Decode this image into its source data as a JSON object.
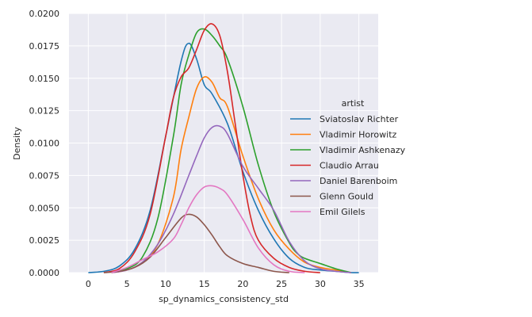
{
  "chart_data": {
    "type": "line",
    "xlabel": "sp_dynamics_consistency_std",
    "ylabel": "Density",
    "xlim": [
      -2.5,
      37.5
    ],
    "ylim": [
      0,
      0.02
    ],
    "xticks": [
      0,
      5,
      10,
      15,
      20,
      25,
      30,
      35
    ],
    "yticks": [
      0.0,
      0.0025,
      0.005,
      0.0075,
      0.01,
      0.0125,
      0.015,
      0.0175,
      0.02
    ],
    "xtick_labels": [
      "0",
      "5",
      "10",
      "15",
      "20",
      "25",
      "30",
      "35"
    ],
    "ytick_labels": [
      "0.0000",
      "0.0025",
      "0.0050",
      "0.0075",
      "0.0100",
      "0.0125",
      "0.0150",
      "0.0175",
      "0.0200"
    ],
    "grid": true,
    "legend_title": "artist",
    "legend_position": "right",
    "series": [
      {
        "name": "Sviatoslav Richter",
        "color": "#1f77b4",
        "x": [
          0,
          2,
          4,
          6,
          8,
          10,
          12,
          13,
          14,
          15,
          16,
          18,
          20,
          22,
          24,
          26,
          28,
          30,
          32,
          34,
          35
        ],
        "y": [
          0.0,
          0.0001,
          0.0005,
          0.0018,
          0.0048,
          0.0105,
          0.0163,
          0.0177,
          0.0165,
          0.0145,
          0.0138,
          0.0115,
          0.0078,
          0.0048,
          0.0026,
          0.0011,
          0.0004,
          0.0002,
          0.0001,
          0.0,
          0.0
        ]
      },
      {
        "name": "Vladimir Horowitz",
        "color": "#ff7f0e",
        "x": [
          3,
          5,
          7,
          9,
          11,
          12,
          13,
          14,
          15,
          16,
          17,
          18,
          20,
          22,
          24,
          26,
          28,
          30,
          32,
          34
        ],
        "y": [
          0.0,
          0.0002,
          0.0008,
          0.0022,
          0.0058,
          0.0095,
          0.012,
          0.0142,
          0.0151,
          0.0147,
          0.0135,
          0.0128,
          0.009,
          0.0057,
          0.0033,
          0.0018,
          0.0008,
          0.0004,
          0.0002,
          0.0
        ]
      },
      {
        "name": "Vladimir Ashkenazy",
        "color": "#2ca02c",
        "x": [
          3,
          5,
          7,
          9,
          11,
          12,
          13,
          14,
          15,
          16,
          17,
          18,
          20,
          22,
          24,
          26,
          27,
          28,
          30,
          32,
          34
        ],
        "y": [
          0.0,
          0.0003,
          0.0012,
          0.0042,
          0.0105,
          0.0145,
          0.0168,
          0.0185,
          0.0188,
          0.0183,
          0.0175,
          0.0165,
          0.0128,
          0.0083,
          0.0047,
          0.0023,
          0.0015,
          0.0011,
          0.0007,
          0.0003,
          0.0
        ]
      },
      {
        "name": "Claudio Arrau",
        "color": "#d62728",
        "x": [
          2,
          4,
          6,
          8,
          10,
          11,
          12,
          13,
          14,
          15,
          16,
          17,
          18,
          19,
          20,
          21,
          22,
          24,
          26,
          28,
          30
        ],
        "y": [
          0.0,
          0.0003,
          0.0016,
          0.0045,
          0.0105,
          0.0135,
          0.0151,
          0.0158,
          0.0172,
          0.0187,
          0.0192,
          0.0183,
          0.0155,
          0.0115,
          0.0075,
          0.0043,
          0.0025,
          0.0011,
          0.0004,
          0.0001,
          0.0
        ]
      },
      {
        "name": "Daniel Barenboim",
        "color": "#9467bd",
        "x": [
          3,
          5,
          7,
          9,
          11,
          13,
          14,
          15,
          16,
          17,
          18,
          20,
          22,
          24,
          26,
          28,
          30,
          32,
          34
        ],
        "y": [
          0.0,
          0.0002,
          0.0008,
          0.0022,
          0.0045,
          0.0075,
          0.009,
          0.0104,
          0.0112,
          0.0113,
          0.0107,
          0.0082,
          0.0065,
          0.0048,
          0.0024,
          0.0009,
          0.0003,
          0.0001,
          0.0
        ]
      },
      {
        "name": "Glenn Gould",
        "color": "#8c564b",
        "x": [
          2,
          4,
          6,
          8,
          10,
          12,
          13,
          14,
          15,
          16,
          17,
          18,
          20,
          22,
          24,
          26
        ],
        "y": [
          0.0,
          0.0001,
          0.0004,
          0.0012,
          0.0027,
          0.0042,
          0.0045,
          0.0043,
          0.0037,
          0.0029,
          0.002,
          0.0013,
          0.0007,
          0.0004,
          0.0001,
          0.0
        ]
      },
      {
        "name": "Emil Gilels",
        "color": "#e377c2",
        "x": [
          3,
          5,
          7,
          9,
          11,
          12,
          13,
          14,
          15,
          16,
          17,
          18,
          20,
          22,
          24,
          26,
          28
        ],
        "y": [
          0.0,
          0.0004,
          0.001,
          0.0016,
          0.0026,
          0.0037,
          0.005,
          0.006,
          0.0066,
          0.0067,
          0.0065,
          0.006,
          0.0041,
          0.0019,
          0.0006,
          0.0001,
          0.0
        ]
      }
    ]
  }
}
